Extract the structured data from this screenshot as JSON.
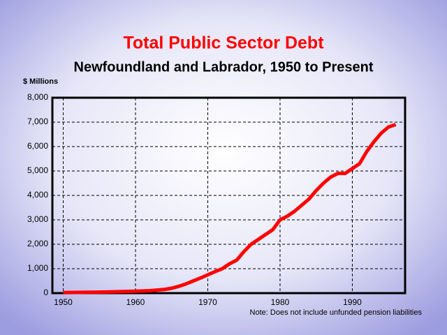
{
  "chart_data": {
    "type": "line",
    "title": "Total Public Sector Debt",
    "subtitle": "Newfoundland and Labrador, 1950 to Present",
    "y_label": "$ Millions",
    "note": "Note: Does not include unfunded pension liabilities",
    "x": [
      1950,
      1955,
      1960,
      1962,
      1964,
      1965,
      1966,
      1967,
      1968,
      1969,
      1970,
      1971,
      1972,
      1973,
      1974,
      1975,
      1976,
      1977,
      1978,
      1979,
      1980,
      1981,
      1982,
      1983,
      1984,
      1985,
      1986,
      1987,
      1988,
      1989,
      1990,
      1991,
      1992,
      1993,
      1994,
      1995,
      1996
    ],
    "series": [
      {
        "name": "Total Public Sector Debt",
        "color": "#ff0000",
        "values": [
          20,
          40,
          80,
          100,
          150,
          200,
          280,
          380,
          500,
          620,
          750,
          880,
          1000,
          1200,
          1350,
          1700,
          2000,
          2200,
          2400,
          2600,
          3000,
          3150,
          3350,
          3600,
          3850,
          4200,
          4500,
          4750,
          4900,
          4900,
          5100,
          5300,
          5800,
          6200,
          6550,
          6800,
          6900
        ]
      }
    ],
    "xlim": [
      1948.5,
      1997.3
    ],
    "xticks": [
      1950,
      1960,
      1970,
      1980,
      1990
    ],
    "ylim": [
      0,
      8000
    ],
    "yticks": [
      0,
      {
        "value": 1000,
        "label": "1,000"
      },
      {
        "value": 2000,
        "label": "2,000"
      },
      {
        "value": 3000,
        "label": "3,000"
      },
      {
        "value": 4000,
        "label": "4,000"
      },
      {
        "value": 5000,
        "label": "5,000"
      },
      {
        "value": 6000,
        "label": "6,000"
      },
      {
        "value": 7000,
        "label": "7,000"
      },
      {
        "value": 8000,
        "label": "8,000"
      }
    ],
    "grid": true
  }
}
